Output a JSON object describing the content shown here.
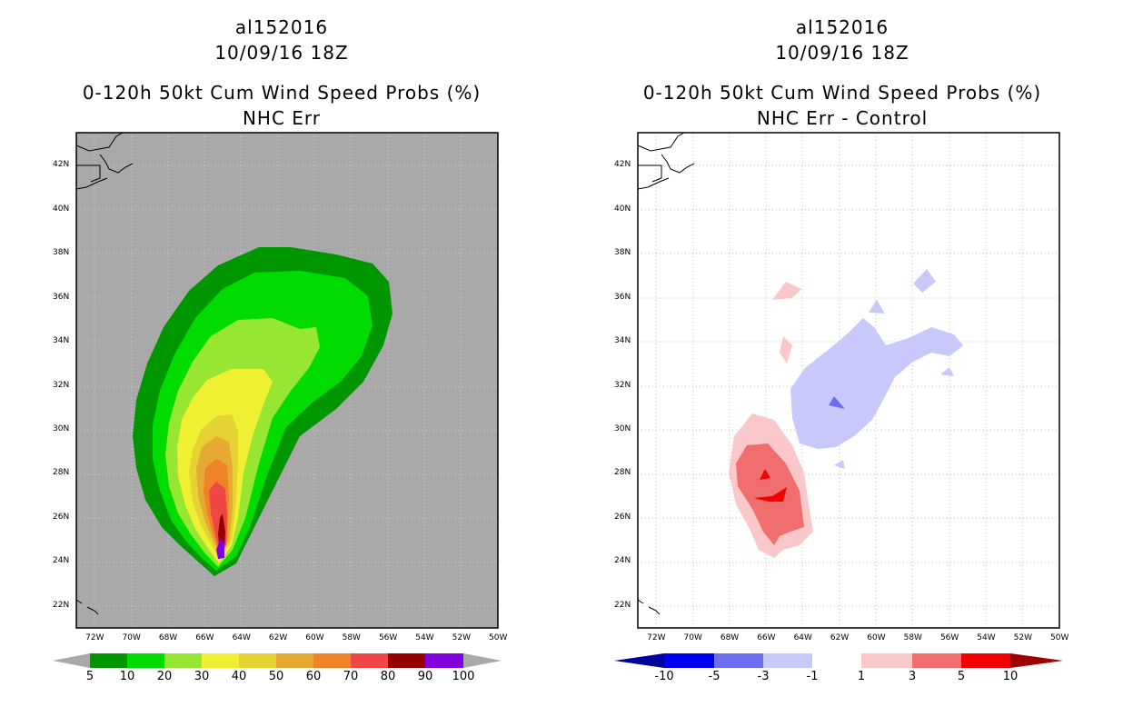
{
  "left_panel": {
    "title1": "al152016",
    "title2": "10/09/16 18Z",
    "title3": "0-120h 50kt Cum Wind Speed Probs (%)",
    "title4": "NHC Err"
  },
  "right_panel": {
    "title1": "al152016",
    "title2": "10/09/16 18Z",
    "title3": "0-120h 50kt Cum Wind Speed Probs (%)",
    "title4": "NHC Err - Control"
  },
  "colors": {
    "land_gray": "#a9a9a9",
    "prob_levels": [
      "#009600",
      "#00dc00",
      "#96e632",
      "#f0f032",
      "#e6d232",
      "#e6aa32",
      "#f08228",
      "#f04646",
      "#960000",
      "#8200dc"
    ],
    "diff_neg": [
      "#0000a0",
      "#0000f0",
      "#6e6ef0",
      "#c8c8fa"
    ],
    "diff_pos": [
      "#fac8c8",
      "#f06e6e",
      "#f00000",
      "#a00000"
    ]
  },
  "chart_data": [
    {
      "type": "heatmap",
      "title": "0-120h 50kt Cum Wind Speed Probs (%)",
      "subtitle": "NHC Err",
      "x_ticks": [
        "72W",
        "70W",
        "68W",
        "66W",
        "64W",
        "62W",
        "60W",
        "58W",
        "56W",
        "54W",
        "52W",
        "50W"
      ],
      "y_ticks": [
        "42N",
        "40N",
        "38N",
        "36N",
        "34N",
        "32N",
        "30N",
        "28N",
        "26N",
        "24N",
        "22N"
      ],
      "lon_range": [
        -73,
        -50
      ],
      "lat_range": [
        21,
        43.5
      ],
      "colorbar_levels": [
        "5",
        "10",
        "20",
        "30",
        "40",
        "50",
        "60",
        "70",
        "80",
        "90",
        "100"
      ]
    },
    {
      "type": "heatmap",
      "title": "0-120h 50kt Cum Wind Speed Probs (%)",
      "subtitle": "NHC Err - Control",
      "x_ticks": [
        "72W",
        "70W",
        "68W",
        "66W",
        "64W",
        "62W",
        "60W",
        "58W",
        "56W",
        "54W",
        "52W",
        "50W"
      ],
      "y_ticks": [
        "42N",
        "40N",
        "38N",
        "36N",
        "34N",
        "32N",
        "30N",
        "28N",
        "26N",
        "24N",
        "22N"
      ],
      "lon_range": [
        -73,
        -50
      ],
      "lat_range": [
        21,
        43.5
      ],
      "colorbar_levels": [
        "-10",
        "-5",
        "-3",
        "-1",
        "1",
        "3",
        "5",
        "10"
      ]
    }
  ]
}
